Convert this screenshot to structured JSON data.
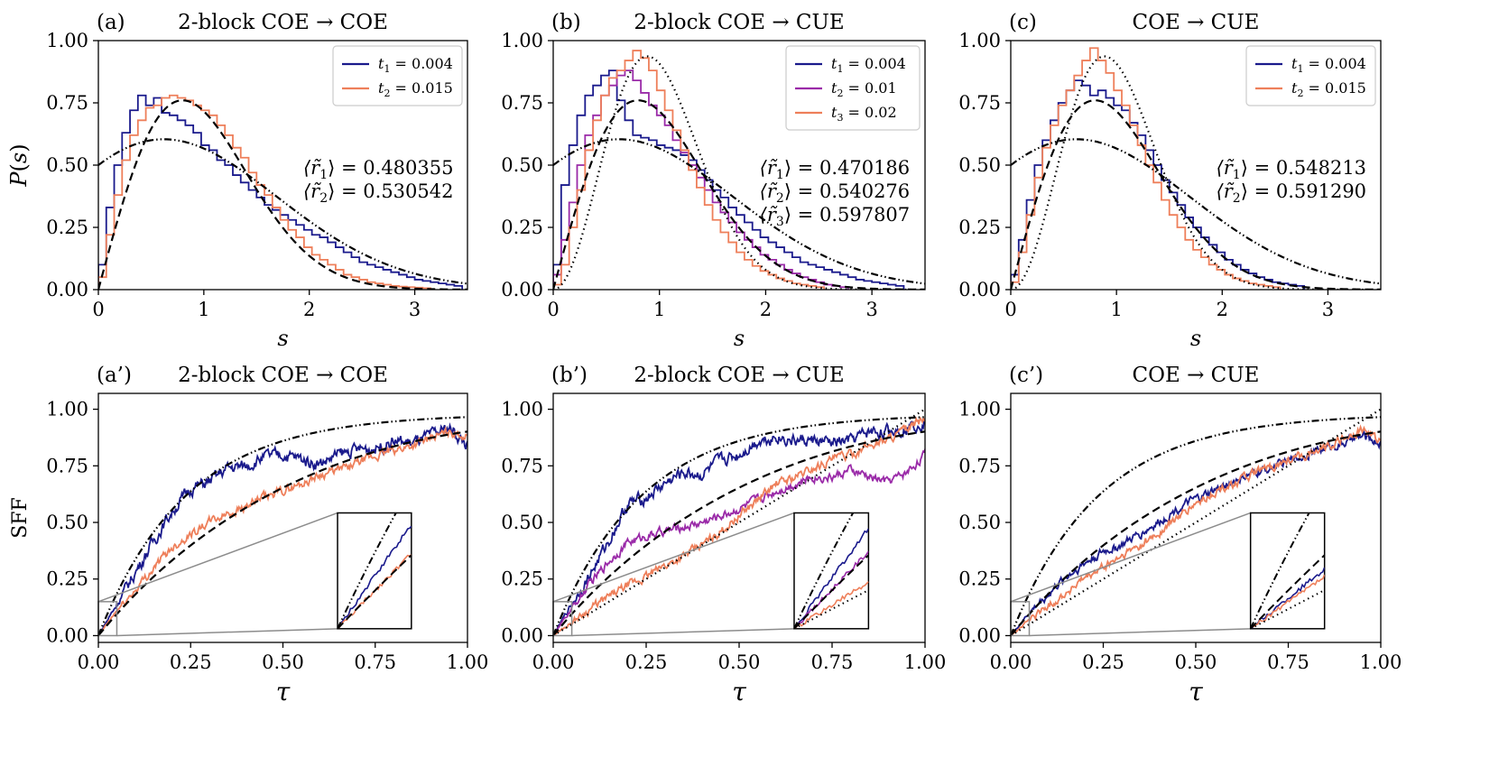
{
  "colors": {
    "c1": "#1a1a8c",
    "c2": "#9a2aa8",
    "c3": "#ee7f5a",
    "gray": "#8c8c8c"
  },
  "chart_data": [
    {
      "type": "line",
      "panel_label": "(a)",
      "title": "2-block COE → COE",
      "xlabel": "",
      "ylabel": "P(s)",
      "xlim": [
        0,
        3.5
      ],
      "ylim": [
        0,
        1.0
      ],
      "xticks": [
        "0",
        "1",
        "2",
        "3"
      ],
      "yticks": [
        "0.00",
        "0.25",
        "0.50",
        "0.75",
        "1.00"
      ],
      "legend": [
        {
          "name": "t",
          "sub": "1",
          "value": "= 0.004",
          "color": "#1a1a8c"
        },
        {
          "name": "t",
          "sub": "2",
          "value": "= 0.015",
          "color": "#ee7f5a"
        }
      ],
      "annotations": [
        {
          "label": "⟨r̃",
          "sub": "1",
          "value": "⟩ = 0.480355",
          "color": "#1a1a8c"
        },
        {
          "label": "⟨r̃",
          "sub": "2",
          "value": "⟩ = 0.530542",
          "color": "#ee7f5a"
        }
      ],
      "series": [
        {
          "name": "t1",
          "kind": "hist",
          "color": "#1a1a8c",
          "bin_width": 0.075,
          "values": [
            0.1,
            0.33,
            0.5,
            0.63,
            0.72,
            0.78,
            0.74,
            0.77,
            0.71,
            0.7,
            0.68,
            0.66,
            0.63,
            0.58,
            0.56,
            0.52,
            0.5,
            0.46,
            0.43,
            0.4,
            0.37,
            0.34,
            0.32,
            0.3,
            0.28,
            0.26,
            0.24,
            0.22,
            0.21,
            0.19,
            0.17,
            0.15,
            0.13,
            0.11,
            0.1,
            0.09,
            0.08,
            0.07,
            0.06,
            0.05,
            0.04,
            0.035,
            0.03,
            0.025,
            0.02,
            0.015
          ]
        },
        {
          "name": "t2",
          "kind": "hist",
          "color": "#ee7f5a",
          "bin_width": 0.075,
          "values": [
            0.05,
            0.22,
            0.38,
            0.52,
            0.62,
            0.68,
            0.73,
            0.74,
            0.77,
            0.78,
            0.77,
            0.76,
            0.74,
            0.72,
            0.7,
            0.66,
            0.62,
            0.57,
            0.53,
            0.47,
            0.42,
            0.38,
            0.33,
            0.28,
            0.24,
            0.21,
            0.17,
            0.14,
            0.12,
            0.1,
            0.08,
            0.06,
            0.05,
            0.04,
            0.03,
            0.025,
            0.02,
            0.015,
            0.012,
            0.01,
            0.008,
            0.006
          ]
        }
      ],
      "reference_curves": [
        {
          "name": "COE (Wigner β=1)",
          "style": "dashed",
          "function": "wigner1"
        },
        {
          "name": "2-block COE",
          "style": "dashdotdot",
          "function": "twoblock1"
        }
      ]
    },
    {
      "type": "line",
      "panel_label": "(b)",
      "title": "2-block COE → CUE",
      "xlabel": "s",
      "ylabel": "",
      "xlim": [
        0,
        3.5
      ],
      "ylim": [
        0,
        1.0
      ],
      "xticks": [
        "0",
        "1",
        "2",
        "3"
      ],
      "yticks": [
        "0.00",
        "0.25",
        "0.50",
        "0.75",
        "1.00"
      ],
      "legend": [
        {
          "name": "t",
          "sub": "1",
          "value": "= 0.004",
          "color": "#1a1a8c"
        },
        {
          "name": "t",
          "sub": "2",
          "value": "= 0.01",
          "color": "#9a2aa8"
        },
        {
          "name": "t",
          "sub": "3",
          "value": "= 0.02",
          "color": "#ee7f5a"
        }
      ],
      "annotations": [
        {
          "label": "⟨r̃",
          "sub": "1",
          "value": "⟩ = 0.470186",
          "color": "#1a1a8c"
        },
        {
          "label": "⟨r̃",
          "sub": "2",
          "value": "⟩ = 0.540276",
          "color": "#9a2aa8"
        },
        {
          "label": "⟨r̃",
          "sub": "3",
          "value": "⟩ = 0.597807",
          "color": "#ee7f5a"
        }
      ],
      "series": [
        {
          "name": "t1",
          "kind": "hist",
          "color": "#1a1a8c",
          "bin_width": 0.075,
          "values": [
            0.1,
            0.42,
            0.58,
            0.7,
            0.78,
            0.82,
            0.86,
            0.88,
            0.76,
            0.68,
            0.62,
            0.61,
            0.6,
            0.58,
            0.57,
            0.56,
            0.54,
            0.52,
            0.48,
            0.44,
            0.4,
            0.37,
            0.33,
            0.3,
            0.27,
            0.24,
            0.21,
            0.19,
            0.17,
            0.15,
            0.13,
            0.11,
            0.1,
            0.09,
            0.08,
            0.07,
            0.06,
            0.05,
            0.04,
            0.035,
            0.03,
            0.025,
            0.02,
            0.015
          ]
        },
        {
          "name": "t2",
          "kind": "hist",
          "color": "#9a2aa8",
          "bin_width": 0.075,
          "values": [
            0.06,
            0.2,
            0.35,
            0.5,
            0.62,
            0.7,
            0.78,
            0.82,
            0.86,
            0.88,
            0.84,
            0.79,
            0.74,
            0.7,
            0.66,
            0.6,
            0.55,
            0.5,
            0.45,
            0.4,
            0.35,
            0.31,
            0.27,
            0.23,
            0.2,
            0.17,
            0.14,
            0.12,
            0.1,
            0.08,
            0.065,
            0.05,
            0.04,
            0.03,
            0.02,
            0.015,
            0.01
          ]
        },
        {
          "name": "t3",
          "kind": "hist",
          "color": "#ee7f5a",
          "bin_width": 0.075,
          "values": [
            0.02,
            0.1,
            0.25,
            0.4,
            0.56,
            0.68,
            0.78,
            0.85,
            0.88,
            0.92,
            0.96,
            0.93,
            0.88,
            0.8,
            0.72,
            0.64,
            0.56,
            0.48,
            0.41,
            0.34,
            0.28,
            0.23,
            0.19,
            0.15,
            0.12,
            0.095,
            0.075,
            0.06,
            0.045,
            0.035,
            0.025,
            0.02,
            0.015,
            0.01
          ]
        }
      ],
      "reference_curves": [
        {
          "name": "COE (Wigner β=1)",
          "style": "dashed",
          "function": "wigner1"
        },
        {
          "name": "CUE (Wigner β=2)",
          "style": "dotted",
          "function": "wigner2"
        },
        {
          "name": "2-block COE",
          "style": "dashdotdot",
          "function": "twoblock1"
        }
      ]
    },
    {
      "type": "line",
      "panel_label": "(c)",
      "title": "COE → CUE",
      "xlabel": "",
      "ylabel": "",
      "xlim": [
        0,
        3.5
      ],
      "ylim": [
        0,
        1.0
      ],
      "xticks": [
        "0",
        "1",
        "2",
        "3"
      ],
      "yticks": [
        "0.00",
        "0.25",
        "0.50",
        "0.75",
        "1.00"
      ],
      "legend": [
        {
          "name": "t",
          "sub": "1",
          "value": "= 0.004",
          "color": "#1a1a8c"
        },
        {
          "name": "t",
          "sub": "2",
          "value": "= 0.015",
          "color": "#ee7f5a"
        }
      ],
      "annotations": [
        {
          "label": "⟨r̃",
          "sub": "1",
          "value": "⟩ = 0.548213",
          "color": "#1a1a8c"
        },
        {
          "label": "⟨r̃",
          "sub": "2",
          "value": "⟩ = 0.591290",
          "color": "#ee7f5a"
        }
      ],
      "series": [
        {
          "name": "t1",
          "kind": "hist",
          "color": "#1a1a8c",
          "bin_width": 0.075,
          "values": [
            0.06,
            0.2,
            0.36,
            0.5,
            0.6,
            0.68,
            0.75,
            0.8,
            0.84,
            0.82,
            0.78,
            0.8,
            0.77,
            0.74,
            0.72,
            0.67,
            0.62,
            0.56,
            0.5,
            0.44,
            0.39,
            0.34,
            0.29,
            0.25,
            0.21,
            0.18,
            0.15,
            0.12,
            0.1,
            0.08,
            0.065,
            0.05,
            0.04,
            0.03,
            0.025,
            0.02,
            0.015
          ]
        },
        {
          "name": "t2",
          "kind": "hist",
          "color": "#ee7f5a",
          "bin_width": 0.075,
          "values": [
            0.03,
            0.15,
            0.3,
            0.45,
            0.57,
            0.66,
            0.74,
            0.8,
            0.86,
            0.92,
            0.97,
            0.92,
            0.87,
            0.8,
            0.74,
            0.66,
            0.58,
            0.5,
            0.43,
            0.36,
            0.3,
            0.25,
            0.2,
            0.16,
            0.13,
            0.1,
            0.08,
            0.06,
            0.045,
            0.035,
            0.025,
            0.02,
            0.015,
            0.01
          ]
        }
      ],
      "reference_curves": [
        {
          "name": "COE (Wigner β=1)",
          "style": "dashed",
          "function": "wigner1"
        },
        {
          "name": "CUE (Wigner β=2)",
          "style": "dotted",
          "function": "wigner2"
        },
        {
          "name": "2-block COE",
          "style": "dashdotdot",
          "function": "twoblock1"
        }
      ]
    },
    {
      "type": "line",
      "panel_label": "(a’)",
      "title": "2-block COE → COE",
      "xlabel": "",
      "ylabel": "SFF",
      "xlim": [
        0,
        1.0
      ],
      "ylim": [
        -0.03,
        1.07
      ],
      "xticks": [
        "0.00",
        "0.25",
        "0.50",
        "0.75",
        "1.00"
      ],
      "yticks": [
        "0.00",
        "0.25",
        "0.50",
        "0.75",
        "1.00"
      ],
      "inset": {
        "xlim": [
          0,
          0.05
        ],
        "ylim": [
          0,
          0.15
        ]
      },
      "series": [
        {
          "name": "t1",
          "color": "#1a1a8c",
          "start_slope": 2.7,
          "wiggle": 0.05,
          "x": [
            0,
            0.05,
            0.1,
            0.15,
            0.2,
            0.25,
            0.3,
            0.35,
            0.4,
            0.45,
            0.5,
            0.55,
            0.6,
            0.65,
            0.7,
            0.75,
            0.8,
            0.85,
            0.9,
            0.95,
            1.0
          ],
          "y": [
            0,
            0.14,
            0.28,
            0.42,
            0.55,
            0.65,
            0.68,
            0.74,
            0.75,
            0.79,
            0.8,
            0.78,
            0.76,
            0.8,
            0.82,
            0.83,
            0.86,
            0.85,
            0.88,
            0.92,
            0.84
          ]
        },
        {
          "name": "t2",
          "color": "#ee7f5a",
          "start_slope": 1.95,
          "wiggle": 0.035,
          "x": [
            0,
            0.05,
            0.1,
            0.15,
            0.2,
            0.25,
            0.3,
            0.35,
            0.4,
            0.45,
            0.5,
            0.55,
            0.6,
            0.65,
            0.7,
            0.75,
            0.8,
            0.85,
            0.9,
            0.95,
            1.0
          ],
          "y": [
            0,
            0.11,
            0.2,
            0.3,
            0.39,
            0.45,
            0.5,
            0.54,
            0.57,
            0.61,
            0.64,
            0.67,
            0.71,
            0.73,
            0.76,
            0.79,
            0.82,
            0.84,
            0.87,
            0.9,
            0.88
          ]
        }
      ],
      "reference_curves": [
        {
          "name": "COE SFF",
          "style": "dashed",
          "function": "sffCOE"
        },
        {
          "name": "2-block COE SFF",
          "style": "dashdotdot",
          "function": "sff2block"
        }
      ]
    },
    {
      "type": "line",
      "panel_label": "(b’)",
      "title": "2-block COE → CUE",
      "xlabel": "τ",
      "ylabel": "",
      "xlim": [
        0,
        1.0
      ],
      "ylim": [
        -0.03,
        1.07
      ],
      "xticks": [
        "0.00",
        "0.25",
        "0.50",
        "0.75",
        "1.00"
      ],
      "yticks": [
        "0.00",
        "0.25",
        "0.50",
        "0.75",
        "1.00"
      ],
      "inset": {
        "xlim": [
          0,
          0.05
        ],
        "ylim": [
          0,
          0.15
        ]
      },
      "series": [
        {
          "name": "t1",
          "color": "#1a1a8c",
          "start_slope": 2.6,
          "wiggle": 0.05,
          "x": [
            0,
            0.05,
            0.1,
            0.15,
            0.2,
            0.25,
            0.3,
            0.35,
            0.4,
            0.45,
            0.5,
            0.55,
            0.6,
            0.65,
            0.7,
            0.75,
            0.8,
            0.85,
            0.9,
            0.95,
            1.0
          ],
          "y": [
            0,
            0.14,
            0.27,
            0.42,
            0.58,
            0.61,
            0.67,
            0.72,
            0.71,
            0.77,
            0.8,
            0.86,
            0.88,
            0.86,
            0.86,
            0.85,
            0.86,
            0.9,
            0.9,
            0.92,
            0.95
          ]
        },
        {
          "name": "t2",
          "color": "#9a2aa8",
          "start_slope": 2.0,
          "wiggle": 0.035,
          "x": [
            0,
            0.05,
            0.1,
            0.15,
            0.2,
            0.25,
            0.3,
            0.35,
            0.4,
            0.45,
            0.5,
            0.55,
            0.6,
            0.65,
            0.7,
            0.75,
            0.8,
            0.85,
            0.9,
            0.95,
            1.0
          ],
          "y": [
            0,
            0.12,
            0.23,
            0.33,
            0.41,
            0.44,
            0.46,
            0.48,
            0.5,
            0.53,
            0.56,
            0.6,
            0.64,
            0.67,
            0.7,
            0.7,
            0.73,
            0.7,
            0.68,
            0.72,
            0.8
          ]
        },
        {
          "name": "t3",
          "color": "#ee7f5a",
          "start_slope": 1.2,
          "wiggle": 0.035,
          "x": [
            0,
            0.05,
            0.1,
            0.15,
            0.2,
            0.25,
            0.3,
            0.35,
            0.4,
            0.45,
            0.5,
            0.55,
            0.6,
            0.65,
            0.7,
            0.75,
            0.8,
            0.85,
            0.9,
            0.95,
            1.0
          ],
          "y": [
            0,
            0.06,
            0.12,
            0.17,
            0.22,
            0.26,
            0.31,
            0.35,
            0.4,
            0.46,
            0.53,
            0.6,
            0.67,
            0.7,
            0.74,
            0.78,
            0.8,
            0.84,
            0.87,
            0.91,
            0.96
          ]
        }
      ],
      "reference_curves": [
        {
          "name": "COE SFF",
          "style": "dashed",
          "function": "sffCOE"
        },
        {
          "name": "CUE SFF",
          "style": "dotted",
          "function": "sffCUE"
        },
        {
          "name": "2-block COE SFF",
          "style": "dashdotdot",
          "function": "sff2block"
        }
      ]
    },
    {
      "type": "line",
      "panel_label": "(c’)",
      "title": "COE → CUE",
      "xlabel": "",
      "ylabel": "",
      "xlim": [
        0,
        1.0
      ],
      "ylim": [
        -0.03,
        1.07
      ],
      "xticks": [
        "0.00",
        "0.25",
        "0.50",
        "0.75",
        "1.00"
      ],
      "yticks": [
        "0.00",
        "0.25",
        "0.50",
        "0.75",
        "1.00"
      ],
      "inset": {
        "xlim": [
          0,
          0.05
        ],
        "ylim": [
          0,
          0.15
        ]
      },
      "series": [
        {
          "name": "t1",
          "color": "#1a1a8c",
          "start_slope": 1.55,
          "wiggle": 0.035,
          "x": [
            0,
            0.05,
            0.1,
            0.15,
            0.2,
            0.25,
            0.3,
            0.35,
            0.4,
            0.45,
            0.5,
            0.55,
            0.6,
            0.65,
            0.7,
            0.75,
            0.8,
            0.85,
            0.9,
            0.95,
            1.0
          ],
          "y": [
            0,
            0.1,
            0.18,
            0.26,
            0.32,
            0.37,
            0.4,
            0.45,
            0.5,
            0.56,
            0.6,
            0.64,
            0.68,
            0.71,
            0.74,
            0.77,
            0.8,
            0.83,
            0.85,
            0.88,
            0.85
          ]
        },
        {
          "name": "t2",
          "color": "#ee7f5a",
          "start_slope": 1.35,
          "wiggle": 0.035,
          "x": [
            0,
            0.05,
            0.1,
            0.15,
            0.2,
            0.25,
            0.3,
            0.35,
            0.4,
            0.45,
            0.5,
            0.55,
            0.6,
            0.65,
            0.7,
            0.75,
            0.8,
            0.85,
            0.9,
            0.95,
            1.0
          ],
          "y": [
            0,
            0.07,
            0.13,
            0.19,
            0.25,
            0.3,
            0.35,
            0.4,
            0.45,
            0.52,
            0.58,
            0.63,
            0.67,
            0.71,
            0.74,
            0.77,
            0.8,
            0.84,
            0.87,
            0.91,
            0.86
          ]
        }
      ],
      "reference_curves": [
        {
          "name": "COE SFF",
          "style": "dashed",
          "function": "sffCOE"
        },
        {
          "name": "CUE SFF",
          "style": "dotted",
          "function": "sffCUE"
        },
        {
          "name": "2-block COE SFF",
          "style": "dashdotdot",
          "function": "sff2block"
        }
      ]
    }
  ]
}
